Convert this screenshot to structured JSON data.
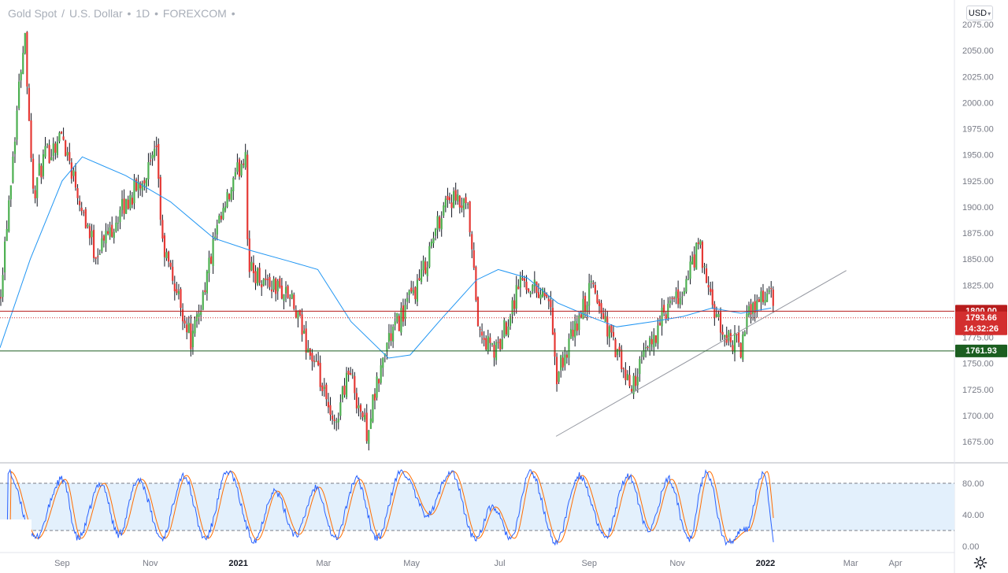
{
  "header": {
    "symbol": "Gold Spot",
    "currency_pair": "U.S. Dollar",
    "interval": "1D",
    "exchange": "FOREXCOM",
    "separator": "/",
    "dot": "•",
    "currency_button": "USD",
    "currency_caret": "▾"
  },
  "price_badges": {
    "level": "1800.00",
    "last_price": "1793.66",
    "countdown": "14:32:26",
    "support": "1761.93"
  },
  "colors": {
    "up": "#26a69a",
    "up_body": "#4caf50",
    "down": "#ef5350",
    "down_body": "#e53935",
    "ma": "#2196f3",
    "level_badge": "#b71c1c",
    "last_badge": "#d32f2f",
    "support_badge": "#1b5e20",
    "stoch_k": "#2962ff",
    "stoch_d": "#ff6d00",
    "stoch_band": "#e3f0fc"
  },
  "icons": {
    "settings": "gear-icon",
    "currency_caret": "chevron-down-icon"
  },
  "chart_data": [
    {
      "type": "candlestick",
      "title": "Gold Spot / U.S. Dollar · 1D · FOREXCOM",
      "ylim": [
        1655,
        2080
      ],
      "y_ticks": [
        1675,
        1700,
        1725,
        1750,
        1775,
        1800,
        1825,
        1850,
        1875,
        1900,
        1925,
        1950,
        1975,
        2000,
        2025,
        2050,
        2075
      ],
      "x_tick_labels": [
        "Sep",
        "Nov",
        "2021",
        "Mar",
        "May",
        "Jul",
        "Sep",
        "Nov",
        "2022",
        "Mar",
        "Apr"
      ],
      "trend_anchors": [
        [
          "2020-07-20",
          1815
        ],
        [
          "2020-08-06",
          2073
        ],
        [
          "2020-08-12",
          1910
        ],
        [
          "2020-08-19",
          1945
        ],
        [
          "2020-09-01",
          1970
        ],
        [
          "2020-09-24",
          1855
        ],
        [
          "2020-10-14",
          1900
        ],
        [
          "2020-11-06",
          1950
        ],
        [
          "2020-11-09",
          1865
        ],
        [
          "2020-11-30",
          1770
        ],
        [
          "2020-12-16",
          1870
        ],
        [
          "2021-01-06",
          1955
        ],
        [
          "2021-01-08",
          1840
        ],
        [
          "2021-02-05",
          1815
        ],
        [
          "2021-02-17",
          1770
        ],
        [
          "2021-02-26",
          1735
        ],
        [
          "2021-03-08",
          1685
        ],
        [
          "2021-03-18",
          1745
        ],
        [
          "2021-03-31",
          1685
        ],
        [
          "2021-04-14",
          1770
        ],
        [
          "2021-05-07",
          1830
        ],
        [
          "2021-05-25",
          1910
        ],
        [
          "2021-06-09",
          1895
        ],
        [
          "2021-06-17",
          1775
        ],
        [
          "2021-06-29",
          1760
        ],
        [
          "2021-07-15",
          1830
        ],
        [
          "2021-08-04",
          1815
        ],
        [
          "2021-08-09",
          1735
        ],
        [
          "2021-09-03",
          1825
        ],
        [
          "2021-09-29",
          1725
        ],
        [
          "2021-10-22",
          1795
        ],
        [
          "2021-11-05",
          1818
        ],
        [
          "2021-11-16",
          1865
        ],
        [
          "2021-11-22",
          1820
        ],
        [
          "2021-12-01",
          1780
        ],
        [
          "2021-12-15",
          1765
        ],
        [
          "2021-12-22",
          1805
        ],
        [
          "2022-01-04",
          1820
        ],
        [
          "2022-01-07",
          1795
        ]
      ],
      "moving_average": [
        [
          "2020-07-20",
          1765
        ],
        [
          "2020-08-10",
          1850
        ],
        [
          "2020-09-01",
          1925
        ],
        [
          "2020-09-15",
          1948
        ],
        [
          "2020-10-15",
          1930
        ],
        [
          "2020-11-15",
          1905
        ],
        [
          "2020-12-15",
          1870
        ],
        [
          "2021-01-10",
          1858
        ],
        [
          "2021-02-05",
          1848
        ],
        [
          "2021-02-25",
          1840
        ],
        [
          "2021-03-20",
          1790
        ],
        [
          "2021-04-15",
          1755
        ],
        [
          "2021-04-30",
          1758
        ],
        [
          "2021-05-20",
          1790
        ],
        [
          "2021-06-15",
          1830
        ],
        [
          "2021-06-30",
          1840
        ],
        [
          "2021-07-20",
          1832
        ],
        [
          "2021-08-10",
          1808
        ],
        [
          "2021-09-01",
          1795
        ],
        [
          "2021-09-20",
          1785
        ],
        [
          "2021-10-15",
          1790
        ],
        [
          "2021-11-05",
          1795
        ],
        [
          "2021-11-25",
          1803
        ],
        [
          "2021-12-15",
          1798
        ],
        [
          "2022-01-05",
          1803
        ]
      ],
      "support_line": [
        [
          "2021-08-09",
          1680
        ],
        [
          "2022-02-26",
          1839
        ]
      ],
      "horizontal_levels": [
        1800.0,
        1793.66,
        1761.93
      ],
      "last_price": 1793.66,
      "level": 1800.0,
      "support": 1761.93
    },
    {
      "type": "line",
      "title": "",
      "ylim": [
        0,
        100
      ],
      "y_ticks": [
        0,
        40,
        80
      ],
      "band": [
        20,
        80
      ],
      "series": [
        {
          "values_key": "stochastic_k"
        },
        {
          "values_key": "stochastic_d"
        }
      ],
      "cycle_pivots": [
        [
          "2020-07-25",
          95
        ],
        [
          "2020-08-13",
          10
        ],
        [
          "2020-09-01",
          85
        ],
        [
          "2020-09-12",
          10
        ],
        [
          "2020-09-28",
          80
        ],
        [
          "2020-10-10",
          15
        ],
        [
          "2020-10-24",
          85
        ],
        [
          "2020-11-09",
          10
        ],
        [
          "2020-11-24",
          90
        ],
        [
          "2020-12-09",
          10
        ],
        [
          "2020-12-25",
          95
        ],
        [
          "2021-01-12",
          8
        ],
        [
          "2021-01-26",
          70
        ],
        [
          "2021-02-10",
          15
        ],
        [
          "2021-02-24",
          75
        ],
        [
          "2021-03-09",
          10
        ],
        [
          "2021-03-24",
          85
        ],
        [
          "2021-04-07",
          10
        ],
        [
          "2021-04-24",
          95
        ],
        [
          "2021-05-12",
          40
        ],
        [
          "2021-05-28",
          95
        ],
        [
          "2021-06-14",
          10
        ],
        [
          "2021-06-26",
          50
        ],
        [
          "2021-07-09",
          10
        ],
        [
          "2021-07-22",
          95
        ],
        [
          "2021-08-09",
          5
        ],
        [
          "2021-08-25",
          90
        ],
        [
          "2021-09-12",
          12
        ],
        [
          "2021-09-28",
          90
        ],
        [
          "2021-10-12",
          20
        ],
        [
          "2021-10-26",
          85
        ],
        [
          "2021-11-09",
          10
        ],
        [
          "2021-11-21",
          95
        ],
        [
          "2021-12-05",
          5
        ],
        [
          "2021-12-18",
          20
        ],
        [
          "2021-12-31",
          95
        ],
        [
          "2022-01-07",
          8
        ]
      ]
    }
  ]
}
